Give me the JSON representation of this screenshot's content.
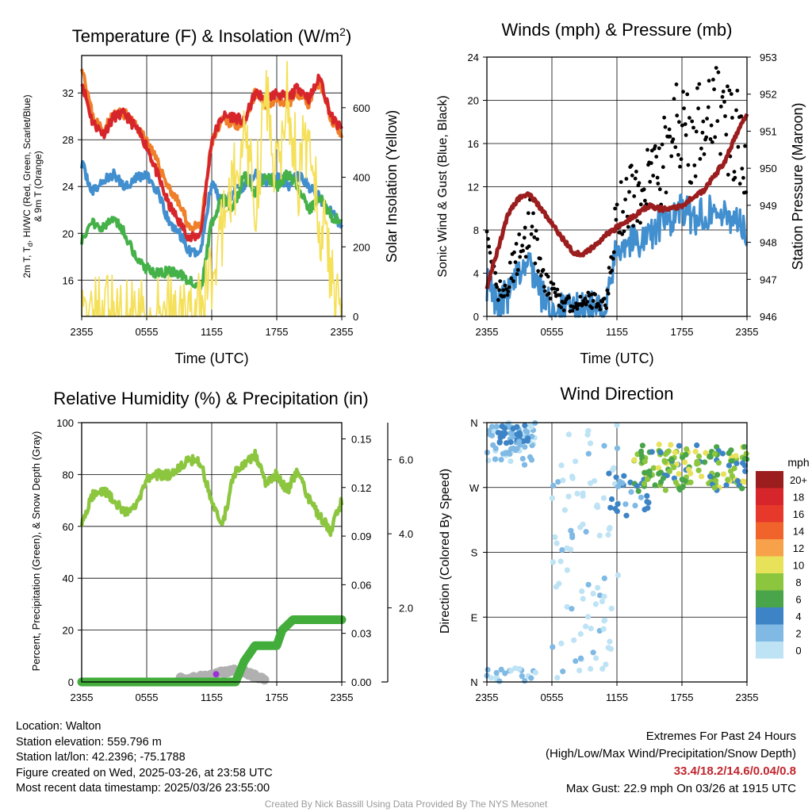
{
  "chart_data": [
    {
      "type": "line",
      "title": "Temperature (F) & Insolation (W/m²)",
      "xlabel": "Time (UTC)",
      "ylabel_left": "2m T, Td, HI/WC (Red, Green, Scarlet/Blue) & 9m T (Orange)",
      "ylabel_right": "Solar Insolation (Yellow)",
      "x_ticks": [
        "2355",
        "0555",
        "1155",
        "1755",
        "2355"
      ],
      "y_ticks_left": [
        16,
        20,
        24,
        28,
        32
      ],
      "y_ticks_right": [
        0,
        200,
        400,
        600
      ],
      "ylim_left": [
        12.9,
        35.2
      ],
      "ylim_right": [
        0,
        750
      ],
      "series": [
        {
          "color": "#d7262b",
          "x": [
            0,
            1,
            2,
            3,
            4,
            5,
            6,
            7,
            8,
            9,
            10,
            11,
            12,
            13,
            14,
            15,
            16,
            17,
            18,
            19,
            20,
            21,
            22,
            23,
            24
          ],
          "values": [
            33,
            29.5,
            28.5,
            30,
            30.2,
            29,
            27.5,
            25,
            22.5,
            21,
            19.5,
            20,
            28,
            30,
            30,
            29.5,
            32,
            31.5,
            32,
            31.5,
            32.5,
            31.5,
            33.4,
            30,
            28.8
          ]
        },
        {
          "color": "#f07f2a",
          "x": [
            0,
            1,
            2,
            3,
            4,
            5,
            6,
            7,
            8,
            9,
            10,
            11,
            12,
            13,
            14,
            15,
            16,
            17,
            18,
            19,
            20,
            21,
            22,
            23,
            24
          ],
          "values": [
            34.5,
            30,
            28.8,
            30.2,
            30.2,
            29.2,
            28,
            26,
            24,
            22.5,
            20.5,
            20.5,
            27.8,
            29.6,
            29.5,
            29,
            32,
            31,
            31.5,
            31,
            32,
            31,
            33,
            29.8,
            28.6
          ]
        },
        {
          "color": "#418fcf",
          "x": [
            0,
            1,
            2,
            3,
            4,
            5,
            6,
            7,
            8,
            9,
            10,
            11,
            12,
            13,
            14,
            15,
            16,
            17,
            18,
            19,
            20,
            21,
            22,
            23,
            24
          ],
          "values": [
            26,
            23.5,
            24.5,
            25,
            24,
            24.8,
            25,
            23.5,
            21,
            20,
            18.3,
            18.5,
            24.5,
            22.5,
            23.5,
            24,
            25,
            24.5,
            25,
            24,
            25,
            24,
            23,
            22,
            20.5
          ]
        },
        {
          "color": "#44b149",
          "x": [
            0,
            1,
            2,
            3,
            4,
            5,
            6,
            7,
            8,
            9,
            10,
            11,
            12,
            13,
            14,
            15,
            16,
            17,
            18,
            19,
            20,
            21,
            22,
            23,
            24
          ],
          "values": [
            19.5,
            21,
            20.5,
            21.3,
            20,
            18,
            17,
            16.5,
            16.8,
            16.5,
            16,
            15.2,
            21,
            23,
            22,
            25,
            23.5,
            25,
            24,
            25,
            24,
            22,
            23,
            21.5,
            21
          ]
        },
        {
          "color": "#f5e05a",
          "x": [
            0,
            2,
            4,
            6,
            8,
            10,
            11,
            12,
            13,
            14,
            15,
            16,
            17,
            18,
            19,
            20,
            21,
            22,
            23,
            24
          ],
          "values": [
            0,
            0,
            0,
            0,
            0,
            0,
            10,
            120,
            250,
            380,
            500,
            330,
            620,
            420,
            650,
            400,
            550,
            280,
            120,
            0
          ]
        }
      ]
    },
    {
      "type": "scatter",
      "title": "Winds (mph) & Pressure (mb)",
      "xlabel": "Time (UTC)",
      "ylabel_left": "Sonic Wind & Gust (Blue, Black)",
      "ylabel_right": "Station Pressure (Maroon)",
      "x_ticks": [
        "2355",
        "0555",
        "1155",
        "1755",
        "2355"
      ],
      "y_ticks_left": [
        0,
        4,
        8,
        12,
        16,
        20,
        24
      ],
      "y_ticks_right": [
        946,
        947,
        948,
        949,
        950,
        951,
        952,
        953
      ],
      "ylim_left": [
        0,
        24
      ],
      "ylim_right": [
        946,
        953
      ],
      "series": [
        {
          "name": "",
          "color": "#418fcf",
          "x": [
            0,
            1,
            2,
            3,
            4,
            5,
            6,
            7,
            8,
            9,
            10,
            11,
            12,
            13,
            14,
            15,
            16,
            17,
            18,
            19,
            20,
            21,
            22,
            23,
            24
          ],
          "values": [
            3,
            1.2,
            2,
            4,
            5,
            2,
            0.8,
            0.5,
            0.5,
            0.8,
            0.7,
            0.5,
            6.5,
            7,
            7,
            7.5,
            8.5,
            9,
            10,
            9,
            9.5,
            10,
            9,
            9.5,
            7
          ]
        },
        {
          "name": "",
          "color": "#000000",
          "x": [
            0,
            1,
            2,
            3,
            4,
            5,
            6,
            7,
            8,
            9,
            10,
            11,
            12,
            13,
            14,
            15,
            16,
            17,
            18,
            19,
            20,
            21,
            22,
            23,
            24
          ],
          "values": [
            6,
            2,
            3,
            6,
            8,
            4,
            2,
            1,
            1,
            1.5,
            1.3,
            1,
            9,
            10,
            11,
            12,
            13,
            15,
            18,
            15,
            17,
            18,
            16,
            16,
            14
          ]
        },
        {
          "name": "",
          "color": "#9b1d1e",
          "x": [
            0,
            1,
            2,
            3,
            4,
            5,
            6,
            7,
            8,
            9,
            10,
            11,
            12,
            13,
            14,
            15,
            16,
            17,
            18,
            19,
            20,
            21,
            22,
            23,
            24
          ],
          "values": [
            946.8,
            947.8,
            948.8,
            949.2,
            949.3,
            948.9,
            948.5,
            948.1,
            947.7,
            947.7,
            947.9,
            948.2,
            948.4,
            948.6,
            948.8,
            949,
            948.9,
            948.9,
            949,
            949.2,
            949.4,
            949.8,
            950.2,
            950.9,
            951.5
          ]
        }
      ]
    },
    {
      "type": "line",
      "title": "Relative Humidity (%) & Precipitation (in)",
      "ylabel_left": "Percent, Precipitation (Green), & Snow Depth (Gray)",
      "x_ticks": [
        "2355",
        "0555",
        "1155",
        "1755",
        "2355"
      ],
      "y_ticks_left": [
        0,
        20,
        40,
        60,
        80,
        100
      ],
      "y_ticks_mid": [
        "0.00",
        "0.03",
        "0.06",
        "0.09",
        "0.12",
        "0.15"
      ],
      "y_ticks_right": [
        "2.0",
        "4.0",
        "6.0"
      ],
      "ylim_left": [
        0,
        100
      ],
      "series": [
        {
          "color": "#8cc63f",
          "x": [
            0,
            1,
            2,
            3,
            4,
            5,
            6,
            7,
            8,
            9,
            10,
            11,
            12,
            13,
            14,
            15,
            16,
            17,
            18,
            19,
            20,
            21,
            22,
            23,
            24
          ],
          "values": [
            62,
            72,
            74,
            70,
            66,
            68,
            78,
            80,
            80,
            82,
            86,
            84,
            70,
            60,
            80,
            84,
            88,
            76,
            80,
            74,
            82,
            70,
            64,
            58,
            70
          ]
        },
        {
          "color": "#43ad3c",
          "x": [
            0,
            2,
            4,
            6,
            8,
            10,
            12,
            14.2,
            15,
            16,
            17,
            18,
            18.5,
            19.5,
            20.5,
            22,
            24
          ],
          "values": [
            0,
            0,
            0,
            0,
            0,
            0,
            0,
            0,
            8,
            14,
            14,
            14,
            20,
            24,
            24,
            24,
            24
          ]
        },
        {
          "color": "#b0b0b0",
          "x": [
            9,
            10,
            11,
            12,
            13,
            14,
            15,
            16,
            17
          ],
          "values": [
            0.5,
            0.5,
            1,
            1.5,
            3,
            4,
            3,
            1.5,
            0.5
          ]
        }
      ]
    },
    {
      "type": "scatter",
      "title": "Wind Direction",
      "ylabel": "Direction (Colored By Speed)",
      "x_ticks": [
        "2355",
        "0555",
        "1155",
        "1755",
        "2355"
      ],
      "y_ticks": [
        "N",
        "E",
        "S",
        "W",
        "N"
      ],
      "legend_title": "mph",
      "legend_labels": [
        "20+",
        "18",
        "16",
        "14",
        "12",
        "10",
        "8",
        "6",
        "4",
        "2",
        "0"
      ],
      "legend_colors": [
        "#9b1d1e",
        "#d7262b",
        "#e6392b",
        "#f0642c",
        "#f7a24a",
        "#e8e15a",
        "#8cc63f",
        "#4aa44a",
        "#3d84c6",
        "#7fb9e4",
        "#bde3f5"
      ],
      "speed_breaks": [
        2,
        4,
        6,
        8,
        10,
        12,
        14,
        16,
        18,
        20
      ]
    }
  ],
  "info": {
    "location": "Location: Walton",
    "elevation": "Station elevation: 559.796 m",
    "latlon": "Station lat/lon: 42.2396; -75.1788",
    "created": "Figure created on Wed, 2025-03-26, at 23:58 UTC",
    "recent": "Most recent data timestamp: 2025/03/26 23:55:00"
  },
  "extremes": {
    "title": "Extremes For Past 24 Hours",
    "subtitle": "(High/Low/Max Wind/Precipitation/Snow Depth)",
    "values": "33.4/18.2/14.6/0.04/0.8",
    "max_gust": "Max Gust: 22.9 mph On 03/26 at 1915 UTC"
  },
  "credit": "Created By Nick Bassill Using Data Provided By The NYS Mesonet"
}
